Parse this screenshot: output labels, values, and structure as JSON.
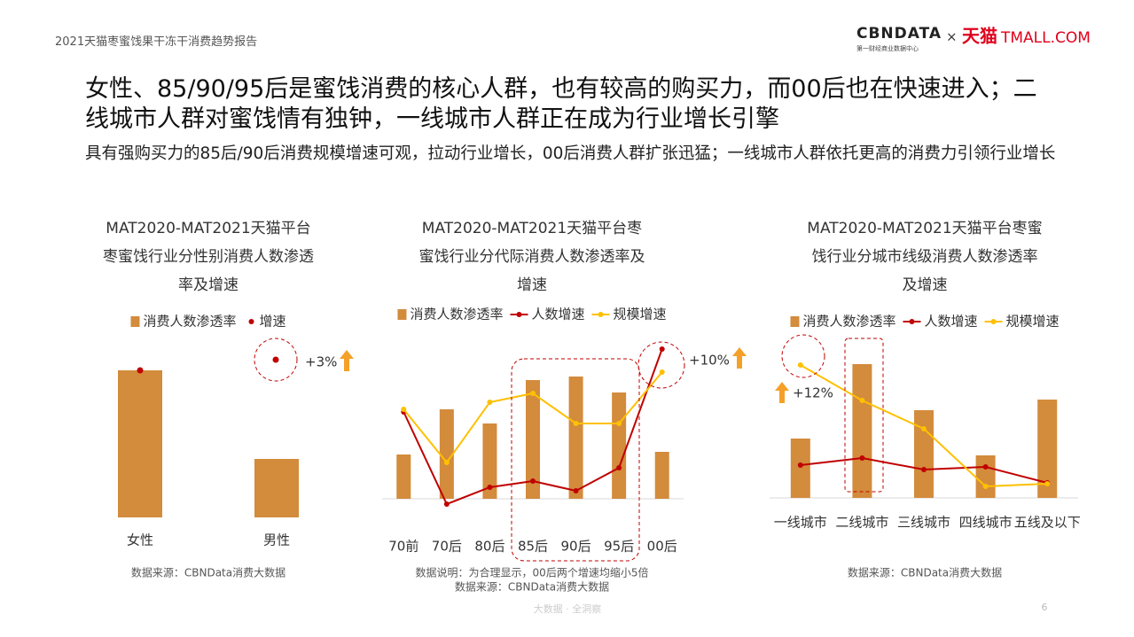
{
  "header": {
    "report_title": "2021天猫枣蜜饯果干冻干消费趋势报告",
    "logo": {
      "cbndata": "CBNDATA",
      "cbndata_sub": "第一财经商业数据中心",
      "times": "×",
      "tmall_cn": "天猫",
      "tmall_en": "TMALL.COM"
    }
  },
  "title": "女性、85/90/95后是蜜饯消费的核心人群，也有较高的购买力，而00后也在快速进入；二线城市人群对蜜饯情有独钟，一线城市人群正在成为行业增长引擎",
  "subtitle": "具有强购买力的85后/90后消费规模增速可观，拉动行业增长，00后消费人群扩张迅猛；一线城市人群依托更高的消费力引领行业增长",
  "chart_data": [
    {
      "type": "bar",
      "title": [
        "MAT2020-MAT2021天猫平台",
        "枣蜜饯行业分性别消费人数渗透",
        "率及增速"
      ],
      "categories": [
        "女性",
        "男性"
      ],
      "series": [
        {
          "name": "消费人数渗透率",
          "color": "#D38B3C",
          "kind": "bar",
          "values": [
            166,
            66
          ]
        },
        {
          "name": "增速",
          "color": "#C00000",
          "kind": "dot",
          "values": [
            166,
            null
          ]
        }
      ],
      "ylim": [
        0,
        200
      ],
      "annotations": [
        "+3%"
      ],
      "notes": [
        "数据来源：CBNData消费大数据"
      ]
    },
    {
      "type": "combo",
      "title": [
        "MAT2020-MAT2021天猫平台枣",
        "蜜饯行业分代际消费人数渗透率及",
        "增速"
      ],
      "categories": [
        "70前",
        "70后",
        "80后",
        "85后",
        "90后",
        "95后",
        "00后"
      ],
      "series": [
        {
          "name": "消费人数渗透率",
          "color": "#D38B3C",
          "kind": "bar",
          "values": [
            50,
            101,
            85,
            134,
            138,
            120,
            53
          ]
        },
        {
          "name": "人数增速",
          "color": "#C00000",
          "kind": "line",
          "values": [
            98,
            -6,
            13,
            20,
            9,
            35,
            169
          ]
        },
        {
          "name": "规模增速",
          "color": "#FFC000",
          "kind": "line",
          "values": [
            101,
            41,
            109,
            119,
            85,
            85,
            143
          ]
        }
      ],
      "ylim": [
        -20,
        180
      ],
      "annotations": [
        "+10%"
      ],
      "notes": [
        "数据说明：为合理显示，00后两个增速均缩小5倍",
        "数据来源：CBNData消费大数据"
      ]
    },
    {
      "type": "combo",
      "title": [
        "MAT2020-MAT2021天猫平台枣蜜",
        "饯行业分城市线级消费人数渗透率",
        "及增速"
      ],
      "categories": [
        "一线城市",
        "二线城市",
        "三线城市",
        "四线城市",
        "五线及以下"
      ],
      "series": [
        {
          "name": "消费人数渗透率",
          "color": "#D38B3C",
          "kind": "bar",
          "values": [
            67,
            151,
            99,
            48,
            111
          ]
        },
        {
          "name": "人数增速",
          "color": "#C00000",
          "kind": "line",
          "values": [
            37,
            45,
            32,
            35,
            17
          ]
        },
        {
          "name": "规模增速",
          "color": "#FFC000",
          "kind": "line",
          "values": [
            150,
            110,
            78,
            13,
            16
          ]
        }
      ],
      "ylim": [
        0,
        200
      ],
      "annotations": [
        "+12%"
      ],
      "notes": [
        "数据来源：CBNData消费大数据"
      ]
    }
  ],
  "footer": {
    "slogan": "大数据 · 全洞察",
    "page": 6
  }
}
